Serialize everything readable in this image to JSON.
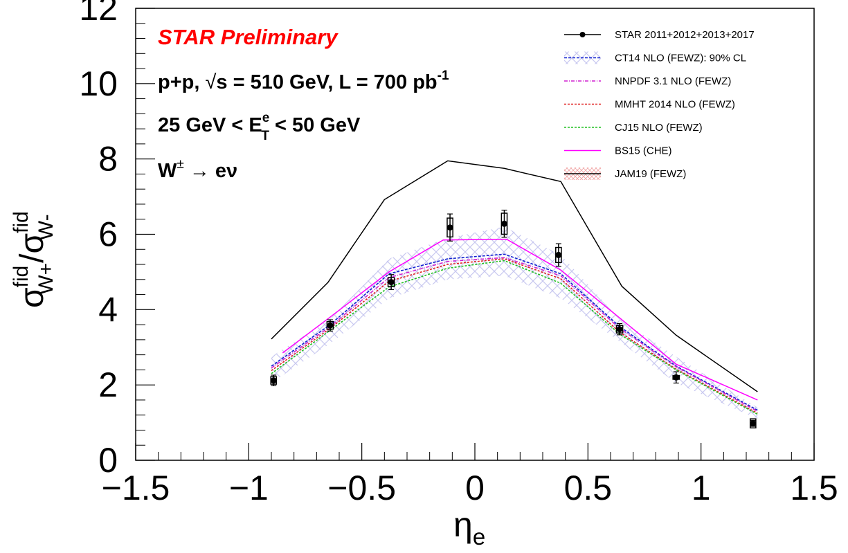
{
  "chart_data": {
    "type": "line",
    "title": "STAR Preliminary",
    "xlabel_main": "η",
    "xlabel_sub": "e",
    "ylabel": {
      "sigma1": "σ",
      "sup1": "fid",
      "sub1": "W+",
      "slash": "/",
      "sigma2": "σ",
      "sup2": "fid",
      "sub2": "W-"
    },
    "xlim": [
      -1.5,
      1.5
    ],
    "ylim": [
      0,
      12
    ],
    "xticks": [
      -1.5,
      -1,
      -0.5,
      0,
      0.5,
      1,
      1.5
    ],
    "xtick_labels": [
      "−1.5",
      "−1",
      "−0.5",
      "0",
      "0.5",
      "1",
      "1.5"
    ],
    "yticks": [
      0,
      2,
      4,
      6,
      8,
      10,
      12
    ],
    "ytick_labels": [
      "0",
      "2",
      "4",
      "6",
      "8",
      "10",
      "12"
    ],
    "grid": false,
    "legend_position": "top-right",
    "annotations": {
      "line1": {
        "a": "p+p,  ",
        "sqrt": "√",
        "b": "s = 510 GeV, L = 700 pb",
        "sup": "-1"
      },
      "line2": {
        "a": "25 GeV < E",
        "sup": "e",
        "sub": "T",
        "b": " < 50 GeV"
      },
      "line3": {
        "a": "W",
        "sup": "±",
        "b": " → eν"
      }
    },
    "data_series": {
      "name": "STAR 2011+2012+2013+2017",
      "color": "#000000",
      "points": [
        {
          "x": -0.89,
          "y": 2.12,
          "err": 0.14,
          "sys": 0.1,
          "bw": 0.025
        },
        {
          "x": -0.64,
          "y": 3.58,
          "err": 0.15,
          "sys": 0.1,
          "bw": 0.028
        },
        {
          "x": -0.37,
          "y": 4.73,
          "err": 0.2,
          "sys": 0.12,
          "bw": 0.028
        },
        {
          "x": -0.11,
          "y": 6.18,
          "err": 0.36,
          "sys": 0.25,
          "bw": 0.025
        },
        {
          "x": 0.13,
          "y": 6.28,
          "err": 0.36,
          "sys": 0.28,
          "bw": 0.025
        },
        {
          "x": 0.37,
          "y": 5.45,
          "err": 0.3,
          "sys": 0.2,
          "bw": 0.025
        },
        {
          "x": 0.64,
          "y": 3.48,
          "err": 0.15,
          "sys": 0.1,
          "bw": 0.028
        },
        {
          "x": 0.89,
          "y": 2.2,
          "err": 0.15,
          "sys": 0.05,
          "bw": 0.028
        },
        {
          "x": 1.23,
          "y": 0.98,
          "err": 0.08,
          "sys": 0.12,
          "bw": 0.025
        }
      ]
    },
    "band": {
      "name": "CT14 NLO (FEWZ): 90% CL",
      "color": "#c8c8f0",
      "x": [
        -0.9,
        -0.64,
        -0.38,
        -0.12,
        0.13,
        0.38,
        0.64,
        0.89,
        1.25
      ],
      "upper": [
        2.75,
        3.75,
        5.35,
        5.9,
        6.2,
        5.45,
        3.75,
        2.75,
        1.4
      ],
      "lower": [
        2.05,
        3.1,
        4.3,
        4.8,
        4.9,
        4.3,
        3.15,
        2.05,
        1.1
      ]
    },
    "series": [
      {
        "name": "CT14 NLO (FEWZ): 90% CL",
        "color": "#1020d0",
        "dash": "4,2",
        "x": [
          -0.9,
          -0.64,
          -0.38,
          -0.12,
          0.13,
          0.38,
          0.64,
          0.89,
          1.25
        ],
        "values": [
          2.5,
          3.6,
          4.95,
          5.35,
          5.47,
          4.95,
          3.55,
          2.5,
          1.33
        ]
      },
      {
        "name": "NNPDF 3.1 NLO (FEWZ)",
        "color": "#d020d0",
        "dash": "5,2,1,2",
        "x": [
          -0.9,
          -0.64,
          -0.38,
          -0.12,
          0.13,
          0.38,
          0.64,
          0.89,
          1.25
        ],
        "values": [
          2.45,
          3.55,
          4.85,
          5.28,
          5.38,
          4.9,
          3.5,
          2.48,
          1.3
        ]
      },
      {
        "name": "MMHT 2014 NLO (FEWZ)",
        "color": "#e02020",
        "dash": "3,2",
        "x": [
          -0.9,
          -0.64,
          -0.38,
          -0.12,
          0.13,
          0.38,
          0.64,
          0.89,
          1.25
        ],
        "values": [
          2.38,
          3.5,
          4.75,
          5.2,
          5.35,
          4.82,
          3.4,
          2.42,
          1.25
        ]
      },
      {
        "name": "CJ15 NLO (FEWZ)",
        "color": "#20c020",
        "dash": "3,2",
        "x": [
          -0.9,
          -0.64,
          -0.38,
          -0.12,
          0.13,
          0.38,
          0.64,
          0.89,
          1.25
        ],
        "values": [
          2.3,
          3.45,
          4.6,
          5.1,
          5.3,
          4.7,
          3.35,
          2.4,
          1.22
        ]
      },
      {
        "name": "BS15 (CHE)",
        "color": "#ff00ff",
        "dash": "",
        "x": [
          -0.85,
          -0.64,
          -0.38,
          -0.14,
          0.14,
          0.38,
          0.64,
          0.89,
          1.25
        ],
        "values": [
          2.85,
          3.8,
          5.0,
          5.85,
          5.87,
          5.05,
          3.78,
          2.55,
          1.6
        ]
      },
      {
        "name": "JAM19 (FEWZ)",
        "color": "#000000",
        "dash": "",
        "x": [
          -0.9,
          -0.65,
          -0.4,
          -0.12,
          0.13,
          0.38,
          0.65,
          0.89,
          1.25
        ],
        "values": [
          3.22,
          4.72,
          6.92,
          7.95,
          7.75,
          7.4,
          4.62,
          3.32,
          1.82
        ]
      }
    ],
    "legend": [
      {
        "label": "STAR 2011+2012+2013+2017",
        "kind": "marker",
        "color": "#000000",
        "dash": ""
      },
      {
        "label": "CT14 NLO (FEWZ): 90% CL",
        "kind": "band-line",
        "color": "#1020d0",
        "dash": "4,2"
      },
      {
        "label": "NNPDF 3.1 NLO (FEWZ)",
        "kind": "line",
        "color": "#d020d0",
        "dash": "5,2,1,2"
      },
      {
        "label": "MMHT 2014 NLO (FEWZ)",
        "kind": "line",
        "color": "#e02020",
        "dash": "3,2"
      },
      {
        "label": "CJ15 NLO (FEWZ)",
        "kind": "line",
        "color": "#20c020",
        "dash": "3,2"
      },
      {
        "label": "BS15 (CHE)",
        "kind": "line",
        "color": "#ff00ff",
        "dash": ""
      },
      {
        "label": "JAM19 (FEWZ)",
        "kind": "line-hatch",
        "color": "#000000",
        "dash": ""
      }
    ],
    "colors": {
      "title": "#ff0000",
      "axis": "#000000"
    }
  }
}
